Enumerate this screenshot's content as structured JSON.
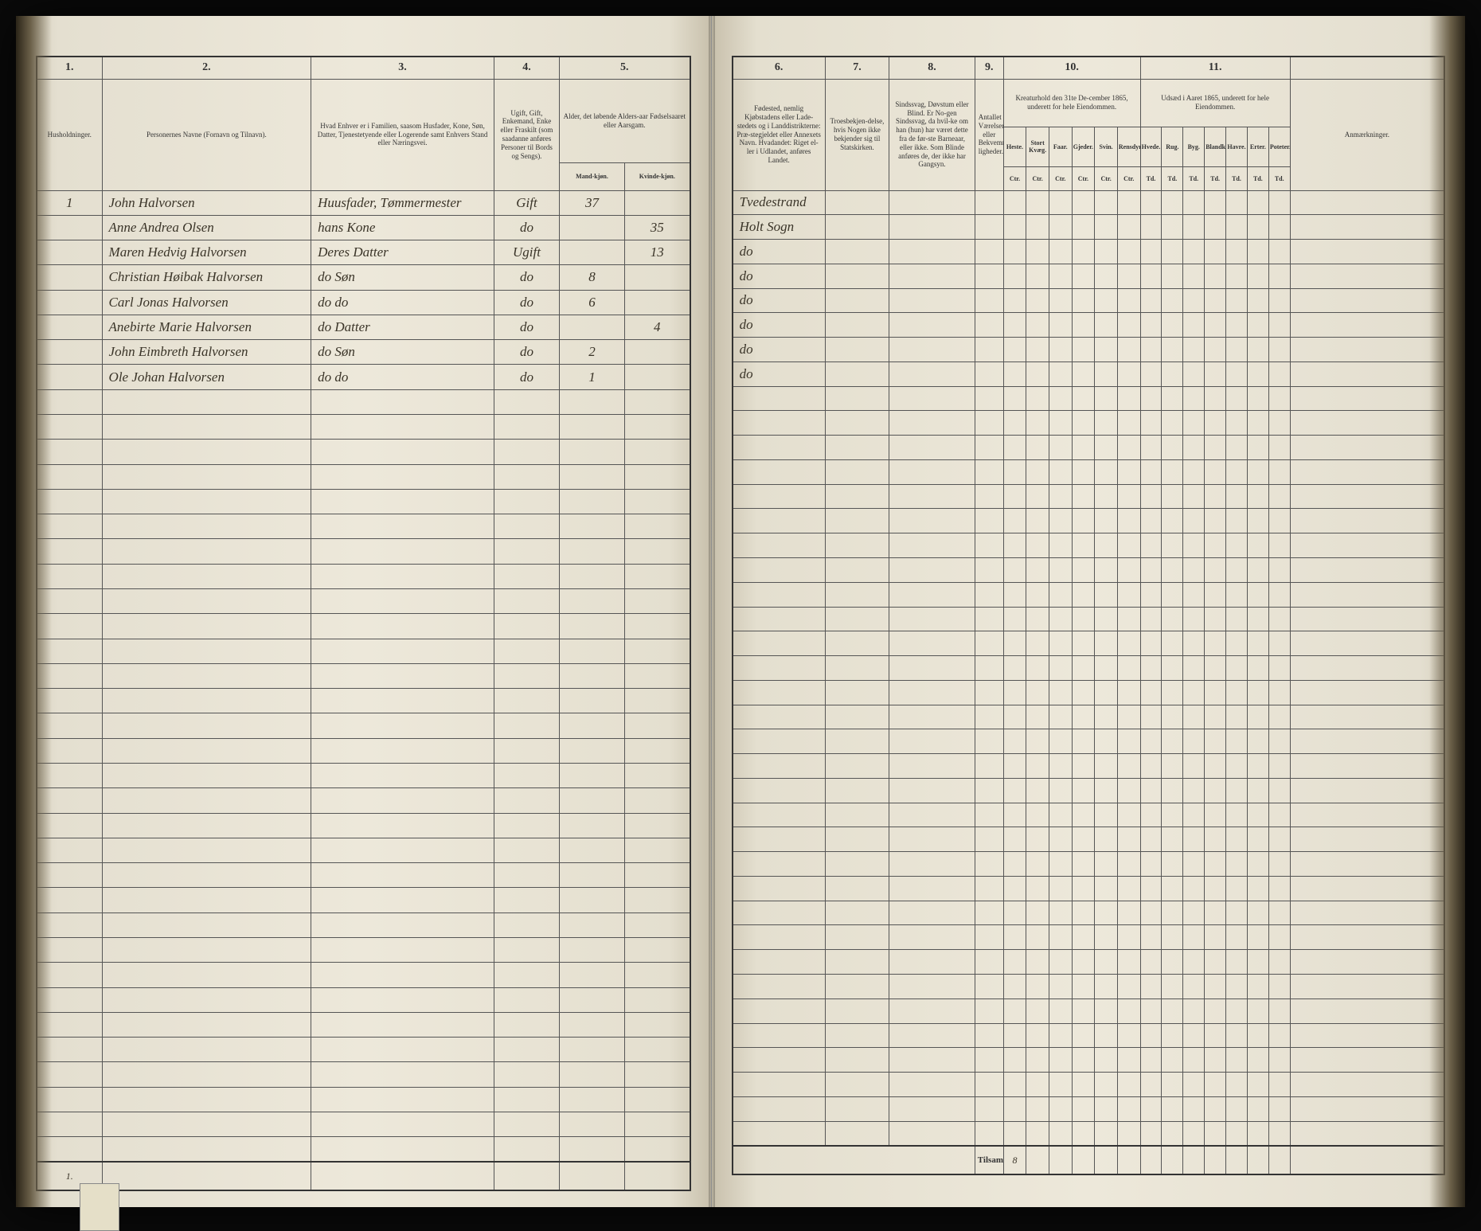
{
  "left": {
    "colnums": [
      "1.",
      "2.",
      "3.",
      "4.",
      "5."
    ],
    "headers": {
      "c1": "Husholdninger.",
      "c2": "Personernes Navne (Fornavn og Tilnavn).",
      "c3": "Hvad Enhver er i Familien, saasom Husfader, Kone, Søn, Datter, Tjenestetyende eller Logerende samt Enhvers Stand eller Næringsvei.",
      "c4": "Ugift, Gift, Enkemand, Enke eller Fraskilt (som saadanne anføres Personer til Bords og Sengs).",
      "c5": "Alder, det løbende Alders-aar Fødselsaaret eller Aarsgam.",
      "c5a": "Mand-kjøn.",
      "c5b": "Kvinde-kjøn."
    },
    "rows": [
      {
        "n": "1",
        "name": "John Halvorsen",
        "rel": "Huusfader, Tømmermester",
        "stat": "Gift",
        "m": "37",
        "f": ""
      },
      {
        "n": "",
        "name": "Anne Andrea Olsen",
        "rel": "hans Kone",
        "stat": "do",
        "m": "",
        "f": "35"
      },
      {
        "n": "",
        "name": "Maren Hedvig Halvorsen",
        "rel": "Deres Datter",
        "stat": "Ugift",
        "m": "",
        "f": "13"
      },
      {
        "n": "",
        "name": "Christian Høibak Halvorsen",
        "rel": "do Søn",
        "stat": "do",
        "m": "8",
        "f": ""
      },
      {
        "n": "",
        "name": "Carl Jonas Halvorsen",
        "rel": "do do",
        "stat": "do",
        "m": "6",
        "f": ""
      },
      {
        "n": "",
        "name": "Anebirte Marie Halvorsen",
        "rel": "do Datter",
        "stat": "do",
        "m": "",
        "f": "4"
      },
      {
        "n": "",
        "name": "John Eimbreth Halvorsen",
        "rel": "do Søn",
        "stat": "do",
        "m": "2",
        "f": ""
      },
      {
        "n": "",
        "name": "Ole Johan Halvorsen",
        "rel": "do do",
        "stat": "do",
        "m": "1",
        "f": ""
      }
    ],
    "total_n": "1."
  },
  "right": {
    "colnums": [
      "6.",
      "7.",
      "8.",
      "9.",
      "10.",
      "11."
    ],
    "headers": {
      "c6": "Fødested, nemlig Kjøbstadens eller Lade-stedets og i Landdistrikterne: Præ-stegjeldet eller Annexets Navn. Hvadandet: Riget el-ler i Udlandet, anføres Landet.",
      "c7": "Troesbekjen-delse, hvis Nogen ikke bekjender sig til Statskirken.",
      "c8": "Sindssvag, Døvstum eller Blind. Er No-gen Sindssvag, da hvil-ke om han (hun) har været dette fra de før-ste Barneaar, eller ikke. Som Blinde anføres de, der ikke har Gangsyn.",
      "c9": "Antallet Værelser eller Bekvemme-ligheder.",
      "c10": "Kreaturhold den 31te De-cember 1865, underett for hele Eiendommen.",
      "c10sub": [
        "Heste.",
        "Stort Kvæg.",
        "Faar.",
        "Gjeder.",
        "Svin.",
        "Rensdyr."
      ],
      "c10sub2": [
        "Ctr.",
        "Ctr.",
        "Ctr.",
        "Ctr.",
        "Ctr.",
        "Ctr."
      ],
      "c11": "Udsæd i Aaret 1865, underett for hele Eiendommen.",
      "c11sub": [
        "Hvede.",
        "Rug.",
        "Byg.",
        "Blandkorn.",
        "Havre.",
        "Erter.",
        "Poteter."
      ],
      "c11sub2": [
        "Td.",
        "Td.",
        "Td.",
        "Td.",
        "Td.",
        "Td.",
        "Td."
      ],
      "c12": "Anmærkninger."
    },
    "rows": [
      {
        "birth": "Tvedestrand"
      },
      {
        "birth": "Holt Sogn"
      },
      {
        "birth": "do"
      },
      {
        "birth": "do"
      },
      {
        "birth": "do"
      },
      {
        "birth": "do"
      },
      {
        "birth": "do"
      },
      {
        "birth": "do"
      }
    ],
    "total_label": "Tilsammen",
    "total_count": "8"
  },
  "empty_row_count": 31
}
